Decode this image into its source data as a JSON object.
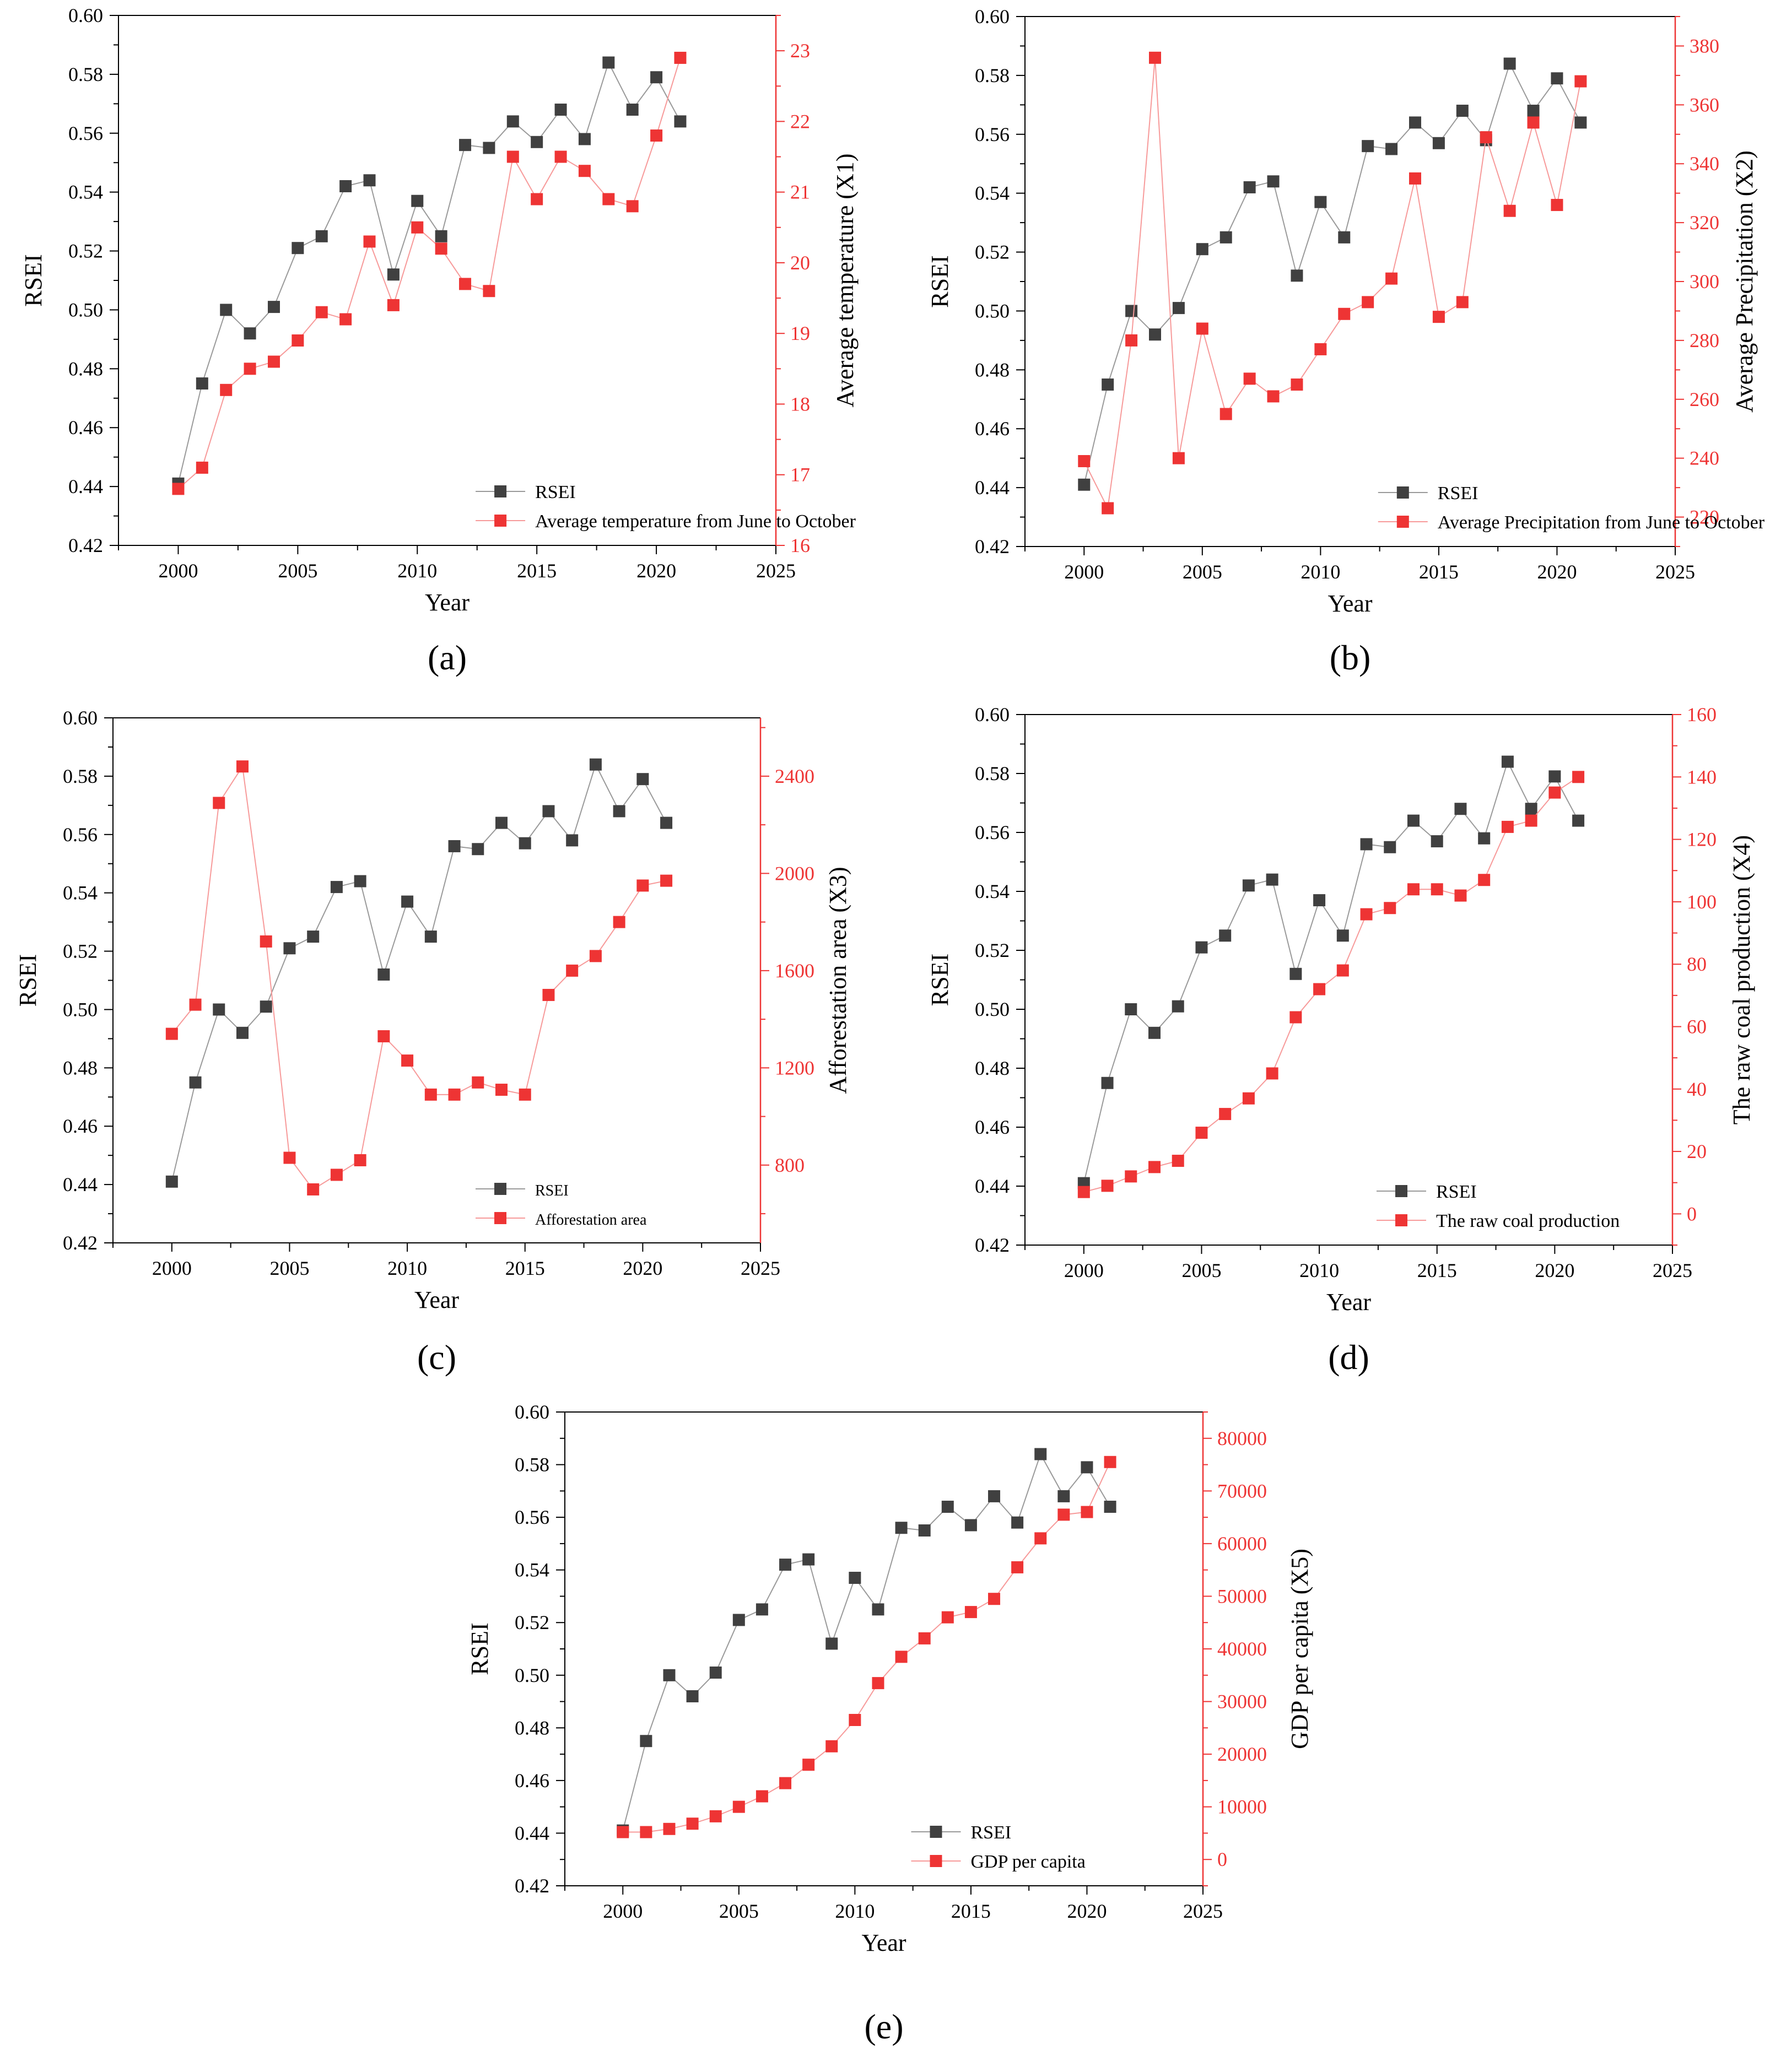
{
  "colors": {
    "rsei": "#404040",
    "rsei_line": "#9a9a9a",
    "factor": "#ee3434",
    "factor_line": "#f79a9a",
    "axis": "#000000"
  },
  "chart_data": [
    {
      "type": "line",
      "panel_label": "(a)",
      "xlabel": "Year",
      "ylabel": "RSEI",
      "y2label": "Average temperature (X1)",
      "xlim": [
        1997.5,
        2025
      ],
      "xticks": [
        2000,
        2005,
        2010,
        2015,
        2020,
        2025
      ],
      "ylim": [
        0.42,
        0.6
      ],
      "yticks": [
        "0.42",
        "0.44",
        "0.46",
        "0.48",
        "0.50",
        "0.52",
        "0.54",
        "0.56",
        "0.58",
        "0.60"
      ],
      "y2lim": [
        16,
        23.5
      ],
      "y2ticks": [
        "16",
        "17",
        "18",
        "19",
        "20",
        "21",
        "22",
        "23"
      ],
      "x": [
        2000,
        2001,
        2002,
        2003,
        2004,
        2005,
        2006,
        2007,
        2008,
        2009,
        2010,
        2011,
        2012,
        2013,
        2014,
        2015,
        2016,
        2017,
        2018,
        2019,
        2020,
        2021
      ],
      "series": [
        {
          "name": "RSEI",
          "axis": "left",
          "values": [
            0.441,
            0.475,
            0.5,
            0.492,
            0.501,
            0.521,
            0.525,
            0.542,
            0.544,
            0.512,
            0.537,
            0.525,
            0.556,
            0.555,
            0.564,
            0.557,
            0.568,
            0.558,
            0.584,
            0.568,
            0.579,
            0.564
          ]
        },
        {
          "name": "Average temperature from June to October",
          "axis": "right",
          "values": [
            16.8,
            17.1,
            18.2,
            18.5,
            18.6,
            18.9,
            19.3,
            19.2,
            20.3,
            19.4,
            20.5,
            20.2,
            19.7,
            19.6,
            21.5,
            20.9,
            21.5,
            21.3,
            20.9,
            20.8,
            21.8,
            22.9
          ]
        }
      ],
      "legend": "lower-right"
    },
    {
      "type": "line",
      "panel_label": "(b)",
      "xlabel": "Year",
      "ylabel": "RSEI",
      "y2label": "Average Precipitation (X2)",
      "xlim": [
        1997.5,
        2025
      ],
      "xticks": [
        2000,
        2005,
        2010,
        2015,
        2020,
        2025
      ],
      "ylim": [
        0.42,
        0.6
      ],
      "yticks": [
        "0.42",
        "0.44",
        "0.46",
        "0.48",
        "0.50",
        "0.52",
        "0.54",
        "0.56",
        "0.58",
        "0.60"
      ],
      "y2lim": [
        210,
        390
      ],
      "y2ticks": [
        "220",
        "240",
        "260",
        "280",
        "300",
        "320",
        "340",
        "360",
        "380"
      ],
      "x": [
        2000,
        2001,
        2002,
        2003,
        2004,
        2005,
        2006,
        2007,
        2008,
        2009,
        2010,
        2011,
        2012,
        2013,
        2014,
        2015,
        2016,
        2017,
        2018,
        2019,
        2020,
        2021
      ],
      "series": [
        {
          "name": "RSEI",
          "axis": "left",
          "values": [
            0.441,
            0.475,
            0.5,
            0.492,
            0.501,
            0.521,
            0.525,
            0.542,
            0.544,
            0.512,
            0.537,
            0.525,
            0.556,
            0.555,
            0.564,
            0.557,
            0.568,
            0.558,
            0.584,
            0.568,
            0.579,
            0.564
          ]
        },
        {
          "name": "Average Precipitation from June to October",
          "axis": "right",
          "values": [
            239,
            223,
            280,
            376,
            240,
            284,
            255,
            267,
            261,
            265,
            277,
            289,
            293,
            301,
            335,
            288,
            293,
            349,
            324,
            354,
            326,
            368
          ]
        }
      ],
      "legend": "lower-right"
    },
    {
      "type": "line",
      "panel_label": "(c)",
      "xlabel": "Year",
      "ylabel": "RSEI",
      "y2label": "Afforestation area (X3)",
      "xlim": [
        1997.5,
        2025
      ],
      "xticks": [
        2000,
        2005,
        2010,
        2015,
        2020,
        2025
      ],
      "ylim": [
        0.42,
        0.6
      ],
      "yticks": [
        "0.42",
        "0.44",
        "0.46",
        "0.48",
        "0.50",
        "0.52",
        "0.54",
        "0.56",
        "0.58",
        "0.60"
      ],
      "y2lim": [
        480,
        2640
      ],
      "y2ticks": [
        "800",
        "1200",
        "1600",
        "2000",
        "2400"
      ],
      "x": [
        2000,
        2001,
        2002,
        2003,
        2004,
        2005,
        2006,
        2007,
        2008,
        2009,
        2010,
        2011,
        2012,
        2013,
        2014,
        2015,
        2016,
        2017,
        2018,
        2019,
        2020,
        2021
      ],
      "series": [
        {
          "name": "RSEI",
          "axis": "left",
          "values": [
            0.441,
            0.475,
            0.5,
            0.492,
            0.501,
            0.521,
            0.525,
            0.542,
            0.544,
            0.512,
            0.537,
            0.525,
            0.556,
            0.555,
            0.564,
            0.557,
            0.568,
            0.558,
            0.584,
            0.568,
            0.579,
            0.564
          ]
        },
        {
          "name": "Afforestation area",
          "axis": "right",
          "values": [
            1340,
            1460,
            2290,
            2440,
            1720,
            830,
            700,
            760,
            820,
            1330,
            1230,
            1090,
            1090,
            1140,
            1110,
            1090,
            1500,
            1600,
            1660,
            1800,
            1950,
            1970
          ]
        }
      ],
      "legend": "lower-right"
    },
    {
      "type": "line",
      "panel_label": "(d)",
      "xlabel": "Year",
      "ylabel": "RSEI",
      "y2label": "The raw coal production  (X4)",
      "xlim": [
        1997.5,
        2025
      ],
      "xticks": [
        2000,
        2005,
        2010,
        2015,
        2020,
        2025
      ],
      "ylim": [
        0.42,
        0.6
      ],
      "yticks": [
        "0.42",
        "0.44",
        "0.46",
        "0.48",
        "0.50",
        "0.52",
        "0.54",
        "0.56",
        "0.58",
        "0.60"
      ],
      "y2lim": [
        -10,
        160
      ],
      "y2ticks": [
        "0",
        "20",
        "40",
        "60",
        "80",
        "100",
        "120",
        "140",
        "160"
      ],
      "x": [
        2000,
        2001,
        2002,
        2003,
        2004,
        2005,
        2006,
        2007,
        2008,
        2009,
        2010,
        2011,
        2012,
        2013,
        2014,
        2015,
        2016,
        2017,
        2018,
        2019,
        2020,
        2021
      ],
      "series": [
        {
          "name": "RSEI",
          "axis": "left",
          "values": [
            0.441,
            0.475,
            0.5,
            0.492,
            0.501,
            0.521,
            0.525,
            0.542,
            0.544,
            0.512,
            0.537,
            0.525,
            0.556,
            0.555,
            0.564,
            0.557,
            0.568,
            0.558,
            0.584,
            0.568,
            0.579,
            0.564
          ]
        },
        {
          "name": "The raw coal production",
          "axis": "right",
          "values": [
            7,
            9,
            12,
            15,
            17,
            26,
            32,
            37,
            45,
            63,
            72,
            78,
            96,
            98,
            104,
            104,
            102,
            107,
            124,
            126,
            135,
            140
          ]
        }
      ],
      "legend": "lower-right"
    },
    {
      "type": "line",
      "panel_label": "(e)",
      "xlabel": "Year",
      "ylabel": "RSEI",
      "y2label": "GDP per capita (X5)",
      "xlim": [
        1997.5,
        2025
      ],
      "xticks": [
        2000,
        2005,
        2010,
        2015,
        2020,
        2025
      ],
      "ylim": [
        0.42,
        0.6
      ],
      "yticks": [
        "0.42",
        "0.44",
        "0.46",
        "0.48",
        "0.50",
        "0.52",
        "0.54",
        "0.56",
        "0.58",
        "0.60"
      ],
      "y2lim": [
        -5000,
        85000
      ],
      "y2ticks": [
        "0",
        "10000",
        "20000",
        "30000",
        "40000",
        "50000",
        "60000",
        "70000",
        "80000"
      ],
      "x": [
        2000,
        2001,
        2002,
        2003,
        2004,
        2005,
        2006,
        2007,
        2008,
        2009,
        2010,
        2011,
        2012,
        2013,
        2014,
        2015,
        2016,
        2017,
        2018,
        2019,
        2020,
        2021
      ],
      "series": [
        {
          "name": "RSEI",
          "axis": "left",
          "values": [
            0.441,
            0.475,
            0.5,
            0.492,
            0.501,
            0.521,
            0.525,
            0.542,
            0.544,
            0.512,
            0.537,
            0.525,
            0.556,
            0.555,
            0.564,
            0.557,
            0.568,
            0.558,
            0.584,
            0.568,
            0.579,
            0.564
          ]
        },
        {
          "name": "GDP per capita",
          "axis": "right",
          "values": [
            5200,
            5200,
            5800,
            6800,
            8200,
            10000,
            12000,
            14500,
            18000,
            21500,
            26500,
            33500,
            38500,
            42000,
            46000,
            47000,
            49500,
            55500,
            61000,
            65500,
            66000,
            75500
          ]
        }
      ],
      "legend": "lower-right"
    }
  ]
}
